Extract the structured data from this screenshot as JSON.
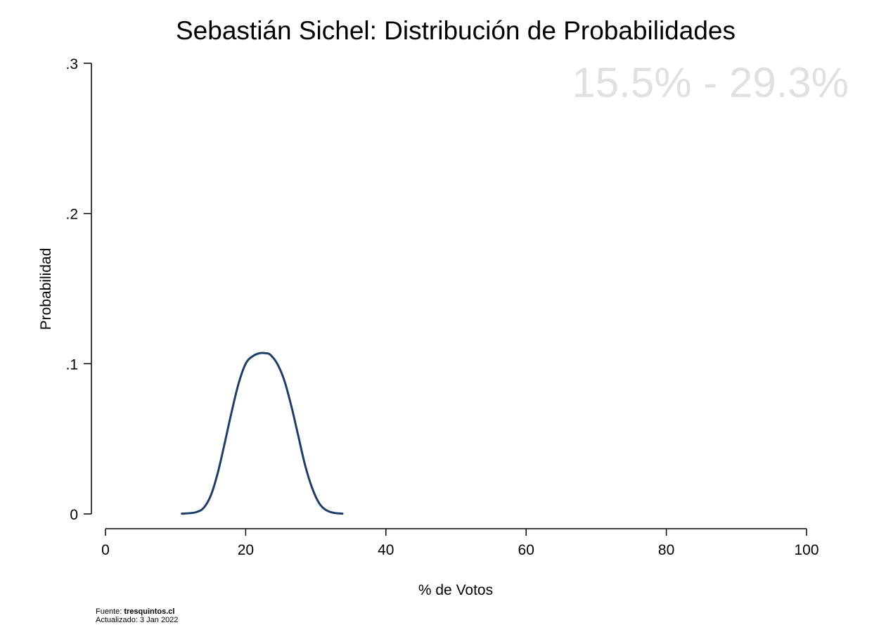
{
  "chart_data": {
    "type": "line",
    "title": "Sebastián Sichel: Distribución de Probabilidades",
    "xlabel": "% de Votos",
    "ylabel": "Probabilidad",
    "xlim": [
      0,
      100
    ],
    "ylim": [
      0,
      0.3
    ],
    "x_ticks": [
      {
        "value": 0,
        "label": "0"
      },
      {
        "value": 20,
        "label": "20"
      },
      {
        "value": 40,
        "label": "40"
      },
      {
        "value": 60,
        "label": "60"
      },
      {
        "value": 80,
        "label": "80"
      },
      {
        "value": 100,
        "label": "100"
      }
    ],
    "y_ticks": [
      {
        "value": 0,
        "label": "0"
      },
      {
        "value": 0.1,
        "label": ".1"
      },
      {
        "value": 0.2,
        "label": ".2"
      },
      {
        "value": 0.3,
        "label": ".3"
      }
    ],
    "annotation": "15.5% - 29.3%",
    "grid": false,
    "line_color": "#1f3e66",
    "annotation_color": "#e0e0e0",
    "series": [
      {
        "x": [
          10.9,
          12.0,
          13.0,
          14.0,
          15.0,
          16.0,
          17.0,
          18.0,
          19.0,
          20.0,
          21.0,
          22.0,
          22.8,
          23.5,
          24.5,
          25.5,
          26.5,
          27.5,
          28.5,
          29.5,
          30.5,
          31.5,
          32.5,
          33.8
        ],
        "y": [
          0.0002,
          0.0005,
          0.0013,
          0.004,
          0.012,
          0.027,
          0.047,
          0.068,
          0.087,
          0.1,
          0.105,
          0.107,
          0.107,
          0.106,
          0.1,
          0.089,
          0.072,
          0.052,
          0.032,
          0.017,
          0.007,
          0.0025,
          0.0008,
          0.0002
        ]
      }
    ]
  },
  "footer": {
    "source_prefix": "Fuente: ",
    "source_name": "tresquintos.cl",
    "updated": "Actualizado: 3 Jan 2022"
  }
}
